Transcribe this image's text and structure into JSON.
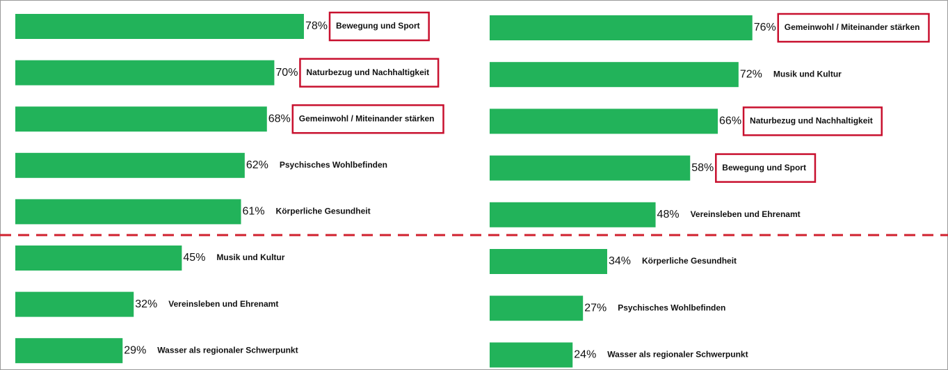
{
  "chart_data": [
    {
      "type": "bar",
      "orientation": "horizontal",
      "color": "#22b35a",
      "highlight_color": "#c8102e",
      "categories": [
        "Bewegung und Sport",
        "Naturbezug und Nachhaltigkeit",
        "Gemeinwohl / Miteinander stärken",
        "Psychisches Wohlbefinden",
        "Körperliche Gesundheit",
        "Musik und Kultur",
        "Vereinsleben und Ehrenamt",
        "Wasser als regionaler Schwerpunkt"
      ],
      "values": [
        78,
        70,
        68,
        62,
        61,
        45,
        32,
        29
      ],
      "value_labels": [
        "78%",
        "70%",
        "68%",
        "62%",
        "61%",
        "45%",
        "32%",
        "29%"
      ],
      "highlighted": [
        true,
        true,
        true,
        false,
        false,
        false,
        false,
        false
      ]
    },
    {
      "type": "bar",
      "orientation": "horizontal",
      "color": "#22b35a",
      "highlight_color": "#c8102e",
      "categories": [
        "Gemeinwohl / Miteinander stärken",
        "Musik und Kultur",
        "Naturbezug und Nachhaltigkeit",
        "Bewegung und Sport",
        "Vereinsleben und Ehrenamt",
        "Körperliche Gesundheit",
        "Psychisches Wohlbefinden",
        "Wasser als regionaler Schwerpunkt"
      ],
      "values": [
        76,
        72,
        66,
        58,
        48,
        34,
        27,
        24
      ],
      "value_labels": [
        "76%",
        "72%",
        "66%",
        "58%",
        "48%",
        "34%",
        "27%",
        "24%"
      ],
      "highlighted": [
        true,
        false,
        true,
        true,
        false,
        false,
        false,
        false
      ]
    }
  ]
}
